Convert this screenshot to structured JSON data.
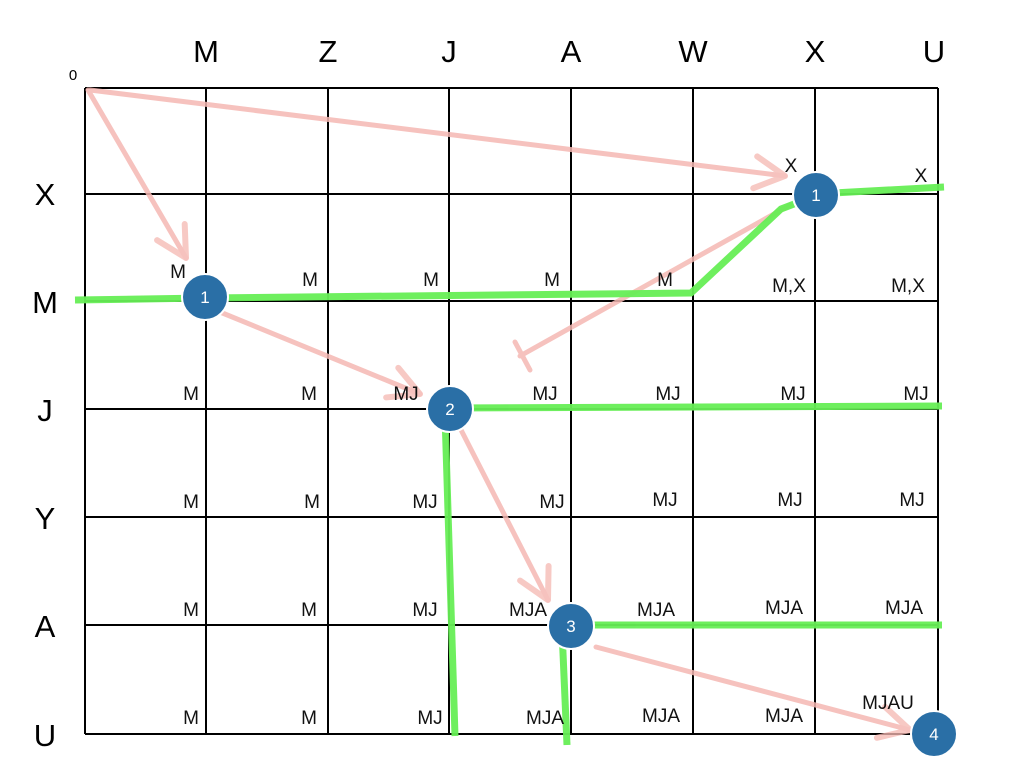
{
  "origin_label": "0",
  "column_headers": [
    "M",
    "Z",
    "J",
    "A",
    "W",
    "X",
    "U"
  ],
  "row_headers": [
    "X",
    "M",
    "J",
    "Y",
    "A",
    "U"
  ],
  "cells": [
    {
      "row": 0,
      "col": 6,
      "text": "X"
    },
    {
      "row": 0,
      "col": 7,
      "text": "X"
    },
    {
      "row": 1,
      "col": 1,
      "text": "M"
    },
    {
      "row": 1,
      "col": 2,
      "text": "M"
    },
    {
      "row": 1,
      "col": 3,
      "text": "M"
    },
    {
      "row": 1,
      "col": 4,
      "text": "M"
    },
    {
      "row": 1,
      "col": 5,
      "text": "M"
    },
    {
      "row": 1,
      "col": 6,
      "text": "M,X"
    },
    {
      "row": 1,
      "col": 7,
      "text": "M,X"
    },
    {
      "row": 2,
      "col": 1,
      "text": "M"
    },
    {
      "row": 2,
      "col": 2,
      "text": "M"
    },
    {
      "row": 2,
      "col": 3,
      "text": "MJ"
    },
    {
      "row": 2,
      "col": 4,
      "text": "MJ"
    },
    {
      "row": 2,
      "col": 5,
      "text": "MJ"
    },
    {
      "row": 2,
      "col": 6,
      "text": "MJ"
    },
    {
      "row": 2,
      "col": 7,
      "text": "MJ"
    },
    {
      "row": 3,
      "col": 1,
      "text": "M"
    },
    {
      "row": 3,
      "col": 2,
      "text": "M"
    },
    {
      "row": 3,
      "col": 3,
      "text": "MJ"
    },
    {
      "row": 3,
      "col": 4,
      "text": "MJ"
    },
    {
      "row": 3,
      "col": 5,
      "text": "MJ"
    },
    {
      "row": 3,
      "col": 6,
      "text": "MJ"
    },
    {
      "row": 3,
      "col": 7,
      "text": "MJ"
    },
    {
      "row": 4,
      "col": 1,
      "text": "M"
    },
    {
      "row": 4,
      "col": 2,
      "text": "M"
    },
    {
      "row": 4,
      "col": 3,
      "text": "MJ"
    },
    {
      "row": 4,
      "col": 4,
      "text": "MJA"
    },
    {
      "row": 4,
      "col": 5,
      "text": "MJA"
    },
    {
      "row": 4,
      "col": 6,
      "text": "MJA"
    },
    {
      "row": 4,
      "col": 7,
      "text": "MJA"
    },
    {
      "row": 5,
      "col": 1,
      "text": "M"
    },
    {
      "row": 5,
      "col": 2,
      "text": "M"
    },
    {
      "row": 5,
      "col": 3,
      "text": "MJ"
    },
    {
      "row": 5,
      "col": 4,
      "text": "MJA"
    },
    {
      "row": 5,
      "col": 5,
      "text": "MJA"
    },
    {
      "row": 5,
      "col": 6,
      "text": "MJA"
    },
    {
      "row": 5,
      "col": 7,
      "text": "MJAU"
    }
  ],
  "badges": [
    {
      "label": "1",
      "row": 1,
      "col": 1
    },
    {
      "label": "1",
      "row": 0,
      "col": 6
    },
    {
      "label": "2",
      "row": 2,
      "col": 3
    },
    {
      "label": "3",
      "row": 4,
      "col": 4
    },
    {
      "label": "4",
      "row": 6,
      "col": 7
    }
  ],
  "colors": {
    "grid": "#000000",
    "path": "#66ee55",
    "arrow": "#f5b8b3",
    "badge": "#2a6fa6",
    "badge_border": "#ffffff",
    "badge_text": "#ffffff"
  }
}
